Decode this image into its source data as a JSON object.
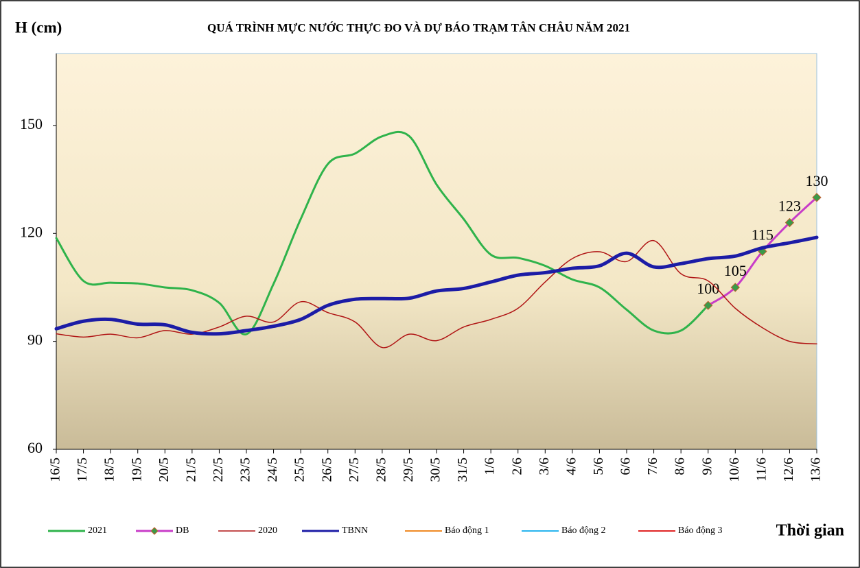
{
  "chart_data": {
    "type": "line",
    "title": "QUÁ TRÌNH MỰC NƯỚC THỰC ĐO VÀ DỰ BÁO TRẠM TÂN CHÂU NĂM 2021",
    "y_label": "H (cm)",
    "x_label": "Thời gian",
    "categories": [
      "16/5",
      "17/5",
      "18/5",
      "19/5",
      "20/5",
      "21/5",
      "22/5",
      "23/5",
      "24/5",
      "25/5",
      "26/5",
      "27/5",
      "28/5",
      "29/5",
      "30/5",
      "31/5",
      "1/6",
      "2/6",
      "3/6",
      "4/6",
      "5/6",
      "6/6",
      "7/6",
      "8/6",
      "9/6",
      "10/6",
      "11/6",
      "12/6",
      "13/6"
    ],
    "ylim": [
      60,
      170
    ],
    "yticks": [
      60,
      90,
      120,
      150
    ],
    "series": [
      {
        "name": "2021",
        "color": "#2fb34b",
        "width": 3,
        "values": [
          118.7,
          106.8,
          106.3,
          106.1,
          105,
          104.2,
          100.7,
          92,
          106,
          124,
          139.3,
          142.2,
          147,
          147,
          133.6,
          124,
          114.1,
          113.2,
          111,
          107.2,
          105,
          98.8,
          93,
          93,
          100,
          null,
          null,
          null,
          null
        ]
      },
      {
        "name": "DB",
        "color": "#c83cc8",
        "width": 3,
        "marker": "#3a9a4a",
        "values": [
          null,
          null,
          null,
          null,
          null,
          null,
          null,
          null,
          null,
          null,
          null,
          null,
          null,
          null,
          null,
          null,
          null,
          null,
          null,
          null,
          null,
          null,
          null,
          null,
          100,
          105,
          115,
          123,
          130
        ]
      },
      {
        "name": "2020",
        "color": "#b01414",
        "width": 1.5,
        "values": [
          92.1,
          91.2,
          92,
          91,
          93,
          92,
          94,
          97,
          95.4,
          101,
          98,
          95.4,
          88.3,
          92,
          90.2,
          94,
          96.1,
          99.2,
          106.5,
          113,
          114.9,
          112.2,
          118,
          108.8,
          106.8,
          99.2,
          93.8,
          90,
          89.3
        ]
      },
      {
        "name": "TBNN",
        "color": "#1c1ca6",
        "width": 5,
        "values": [
          93.5,
          95.6,
          96.1,
          94.8,
          94.6,
          92.5,
          92.1,
          93,
          94.2,
          96.1,
          100,
          101.7,
          101.9,
          102,
          104,
          104.7,
          106.5,
          108.4,
          109.1,
          110.3,
          111,
          114.5,
          110.7,
          111.6,
          113,
          113.7,
          116,
          117.4,
          118.9
        ]
      },
      {
        "name": "Báo động 1",
        "color": "#f08a24",
        "width": 2,
        "values": [
          null,
          null,
          null,
          null,
          null,
          null,
          null,
          null,
          null,
          null,
          null,
          null,
          null,
          null,
          null,
          null,
          null,
          null,
          null,
          null,
          null,
          null,
          null,
          null,
          null,
          null,
          null,
          null,
          null
        ]
      },
      {
        "name": "Báo động 2",
        "color": "#27b4ee",
        "width": 2,
        "values": [
          null,
          null,
          null,
          null,
          null,
          null,
          null,
          null,
          null,
          null,
          null,
          null,
          null,
          null,
          null,
          null,
          null,
          null,
          null,
          null,
          null,
          null,
          null,
          null,
          null,
          null,
          null,
          null,
          null
        ]
      },
      {
        "name": "Báo động 3",
        "color": "#e02424",
        "width": 2,
        "values": [
          null,
          null,
          null,
          null,
          null,
          null,
          null,
          null,
          null,
          null,
          null,
          null,
          null,
          null,
          null,
          null,
          null,
          null,
          null,
          null,
          null,
          null,
          null,
          null,
          null,
          null,
          null,
          null,
          null
        ]
      }
    ]
  }
}
